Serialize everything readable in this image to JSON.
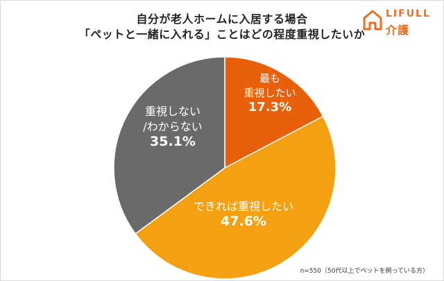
{
  "header": {
    "title_line1": "自分が老人ホームに入居する場合",
    "title_line2": "「ペットと一緒に入れる」ことはどの程度重視したいか"
  },
  "logo": {
    "brand": "LIFULL",
    "sub": "介護",
    "icon": "house-outline-icon",
    "color": "#ed6d1f"
  },
  "footnote": "n=550（50代以上でペットを飼っている方）",
  "chart_data": {
    "type": "pie",
    "title": "自分が老人ホームに入居する場合「ペットと一緒に入れる」ことはどの程度重視したいか",
    "unit": "%",
    "slices": [
      {
        "label_lines": [
          "最も",
          "重視したい"
        ],
        "value": 17.3,
        "display": "17.3%",
        "color": "#e8600b"
      },
      {
        "label_lines": [
          "できれば重視したい"
        ],
        "value": 47.6,
        "display": "47.6%",
        "color": "#f5a011"
      },
      {
        "label_lines": [
          "重視しない",
          "/わからない"
        ],
        "value": 35.1,
        "display": "35.1%",
        "color": "#6a6a6a"
      }
    ]
  }
}
